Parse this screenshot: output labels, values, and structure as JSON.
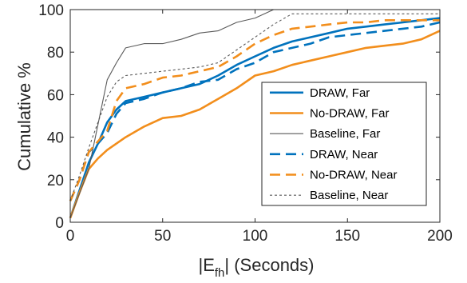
{
  "chart_data": {
    "type": "line",
    "xlabel": "|E",
    "xlabel_sub": "fh",
    "xlabel_suffix": "| (Seconds)",
    "ylabel": "Cumulative %",
    "xlim": [
      0,
      200
    ],
    "ylim": [
      0,
      100
    ],
    "xticks": [
      "0",
      "50",
      "100",
      "150",
      "200"
    ],
    "yticks": [
      "0",
      "20",
      "40",
      "60",
      "80",
      "100"
    ],
    "grid": false,
    "legend_position": "inside-right",
    "series": [
      {
        "name": "DRAW, Far",
        "color": "#0072BD",
        "style": "solid",
        "width": "thick",
        "points": [
          [
            0,
            2
          ],
          [
            5,
            15
          ],
          [
            10,
            28
          ],
          [
            15,
            37
          ],
          [
            20,
            47
          ],
          [
            25,
            53
          ],
          [
            30,
            57
          ],
          [
            40,
            59
          ],
          [
            50,
            61
          ],
          [
            60,
            63
          ],
          [
            70,
            65
          ],
          [
            80,
            69
          ],
          [
            90,
            74
          ],
          [
            100,
            78
          ],
          [
            110,
            82
          ],
          [
            120,
            85
          ],
          [
            130,
            87
          ],
          [
            140,
            89
          ],
          [
            150,
            91
          ],
          [
            160,
            92
          ],
          [
            170,
            93
          ],
          [
            180,
            94
          ],
          [
            190,
            95
          ],
          [
            200,
            96
          ]
        ]
      },
      {
        "name": "No-DRAW, Far",
        "color": "#F28E1C",
        "style": "solid",
        "width": "thick",
        "points": [
          [
            0,
            2
          ],
          [
            5,
            14
          ],
          [
            10,
            25
          ],
          [
            15,
            30
          ],
          [
            20,
            34
          ],
          [
            30,
            40
          ],
          [
            40,
            45
          ],
          [
            50,
            49
          ],
          [
            60,
            50
          ],
          [
            70,
            53
          ],
          [
            80,
            58
          ],
          [
            90,
            63
          ],
          [
            100,
            69
          ],
          [
            110,
            71
          ],
          [
            120,
            74
          ],
          [
            130,
            76
          ],
          [
            140,
            78
          ],
          [
            150,
            80
          ],
          [
            160,
            82
          ],
          [
            170,
            83
          ],
          [
            180,
            84
          ],
          [
            190,
            86
          ],
          [
            200,
            90
          ]
        ]
      },
      {
        "name": "Baseline, Far",
        "color": "#595959",
        "style": "solid",
        "width": "thin",
        "points": [
          [
            0,
            2
          ],
          [
            10,
            25
          ],
          [
            20,
            67
          ],
          [
            25,
            75
          ],
          [
            30,
            82
          ],
          [
            40,
            84
          ],
          [
            50,
            84
          ],
          [
            60,
            86
          ],
          [
            70,
            89
          ],
          [
            80,
            90
          ],
          [
            90,
            94
          ],
          [
            100,
            96
          ],
          [
            110,
            100
          ],
          [
            200,
            100
          ]
        ]
      },
      {
        "name": "DRAW, Near",
        "color": "#0072BD",
        "style": "dashed",
        "width": "thick",
        "points": [
          [
            0,
            10
          ],
          [
            5,
            20
          ],
          [
            10,
            33
          ],
          [
            15,
            37
          ],
          [
            20,
            42
          ],
          [
            25,
            51
          ],
          [
            30,
            56
          ],
          [
            40,
            58
          ],
          [
            50,
            61
          ],
          [
            60,
            63
          ],
          [
            70,
            66
          ],
          [
            80,
            67
          ],
          [
            90,
            72
          ],
          [
            100,
            75
          ],
          [
            110,
            80
          ],
          [
            120,
            82
          ],
          [
            130,
            84
          ],
          [
            140,
            87
          ],
          [
            150,
            88
          ],
          [
            160,
            89
          ],
          [
            170,
            90
          ],
          [
            180,
            91
          ],
          [
            190,
            92
          ],
          [
            200,
            94
          ]
        ]
      },
      {
        "name": "No-DRAW, Near",
        "color": "#F28E1C",
        "style": "dashed",
        "width": "thick",
        "points": [
          [
            0,
            10
          ],
          [
            5,
            20
          ],
          [
            10,
            33
          ],
          [
            15,
            38
          ],
          [
            20,
            43
          ],
          [
            25,
            57
          ],
          [
            30,
            63
          ],
          [
            40,
            65
          ],
          [
            50,
            68
          ],
          [
            60,
            69
          ],
          [
            70,
            71
          ],
          [
            80,
            73
          ],
          [
            90,
            78
          ],
          [
            100,
            84
          ],
          [
            110,
            88
          ],
          [
            120,
            91
          ],
          [
            130,
            92
          ],
          [
            140,
            93
          ],
          [
            150,
            94
          ],
          [
            160,
            94
          ],
          [
            170,
            95
          ],
          [
            180,
            95
          ],
          [
            190,
            95
          ],
          [
            200,
            95
          ]
        ]
      },
      {
        "name": "Baseline, Near",
        "color": "#595959",
        "style": "dotted",
        "width": "thin",
        "points": [
          [
            0,
            10
          ],
          [
            5,
            22
          ],
          [
            10,
            35
          ],
          [
            20,
            59
          ],
          [
            25,
            66
          ],
          [
            30,
            69
          ],
          [
            40,
            70
          ],
          [
            50,
            71
          ],
          [
            60,
            72
          ],
          [
            70,
            73
          ],
          [
            80,
            75
          ],
          [
            90,
            81
          ],
          [
            100,
            87
          ],
          [
            110,
            93
          ],
          [
            120,
            98
          ],
          [
            200,
            98
          ]
        ]
      }
    ]
  }
}
